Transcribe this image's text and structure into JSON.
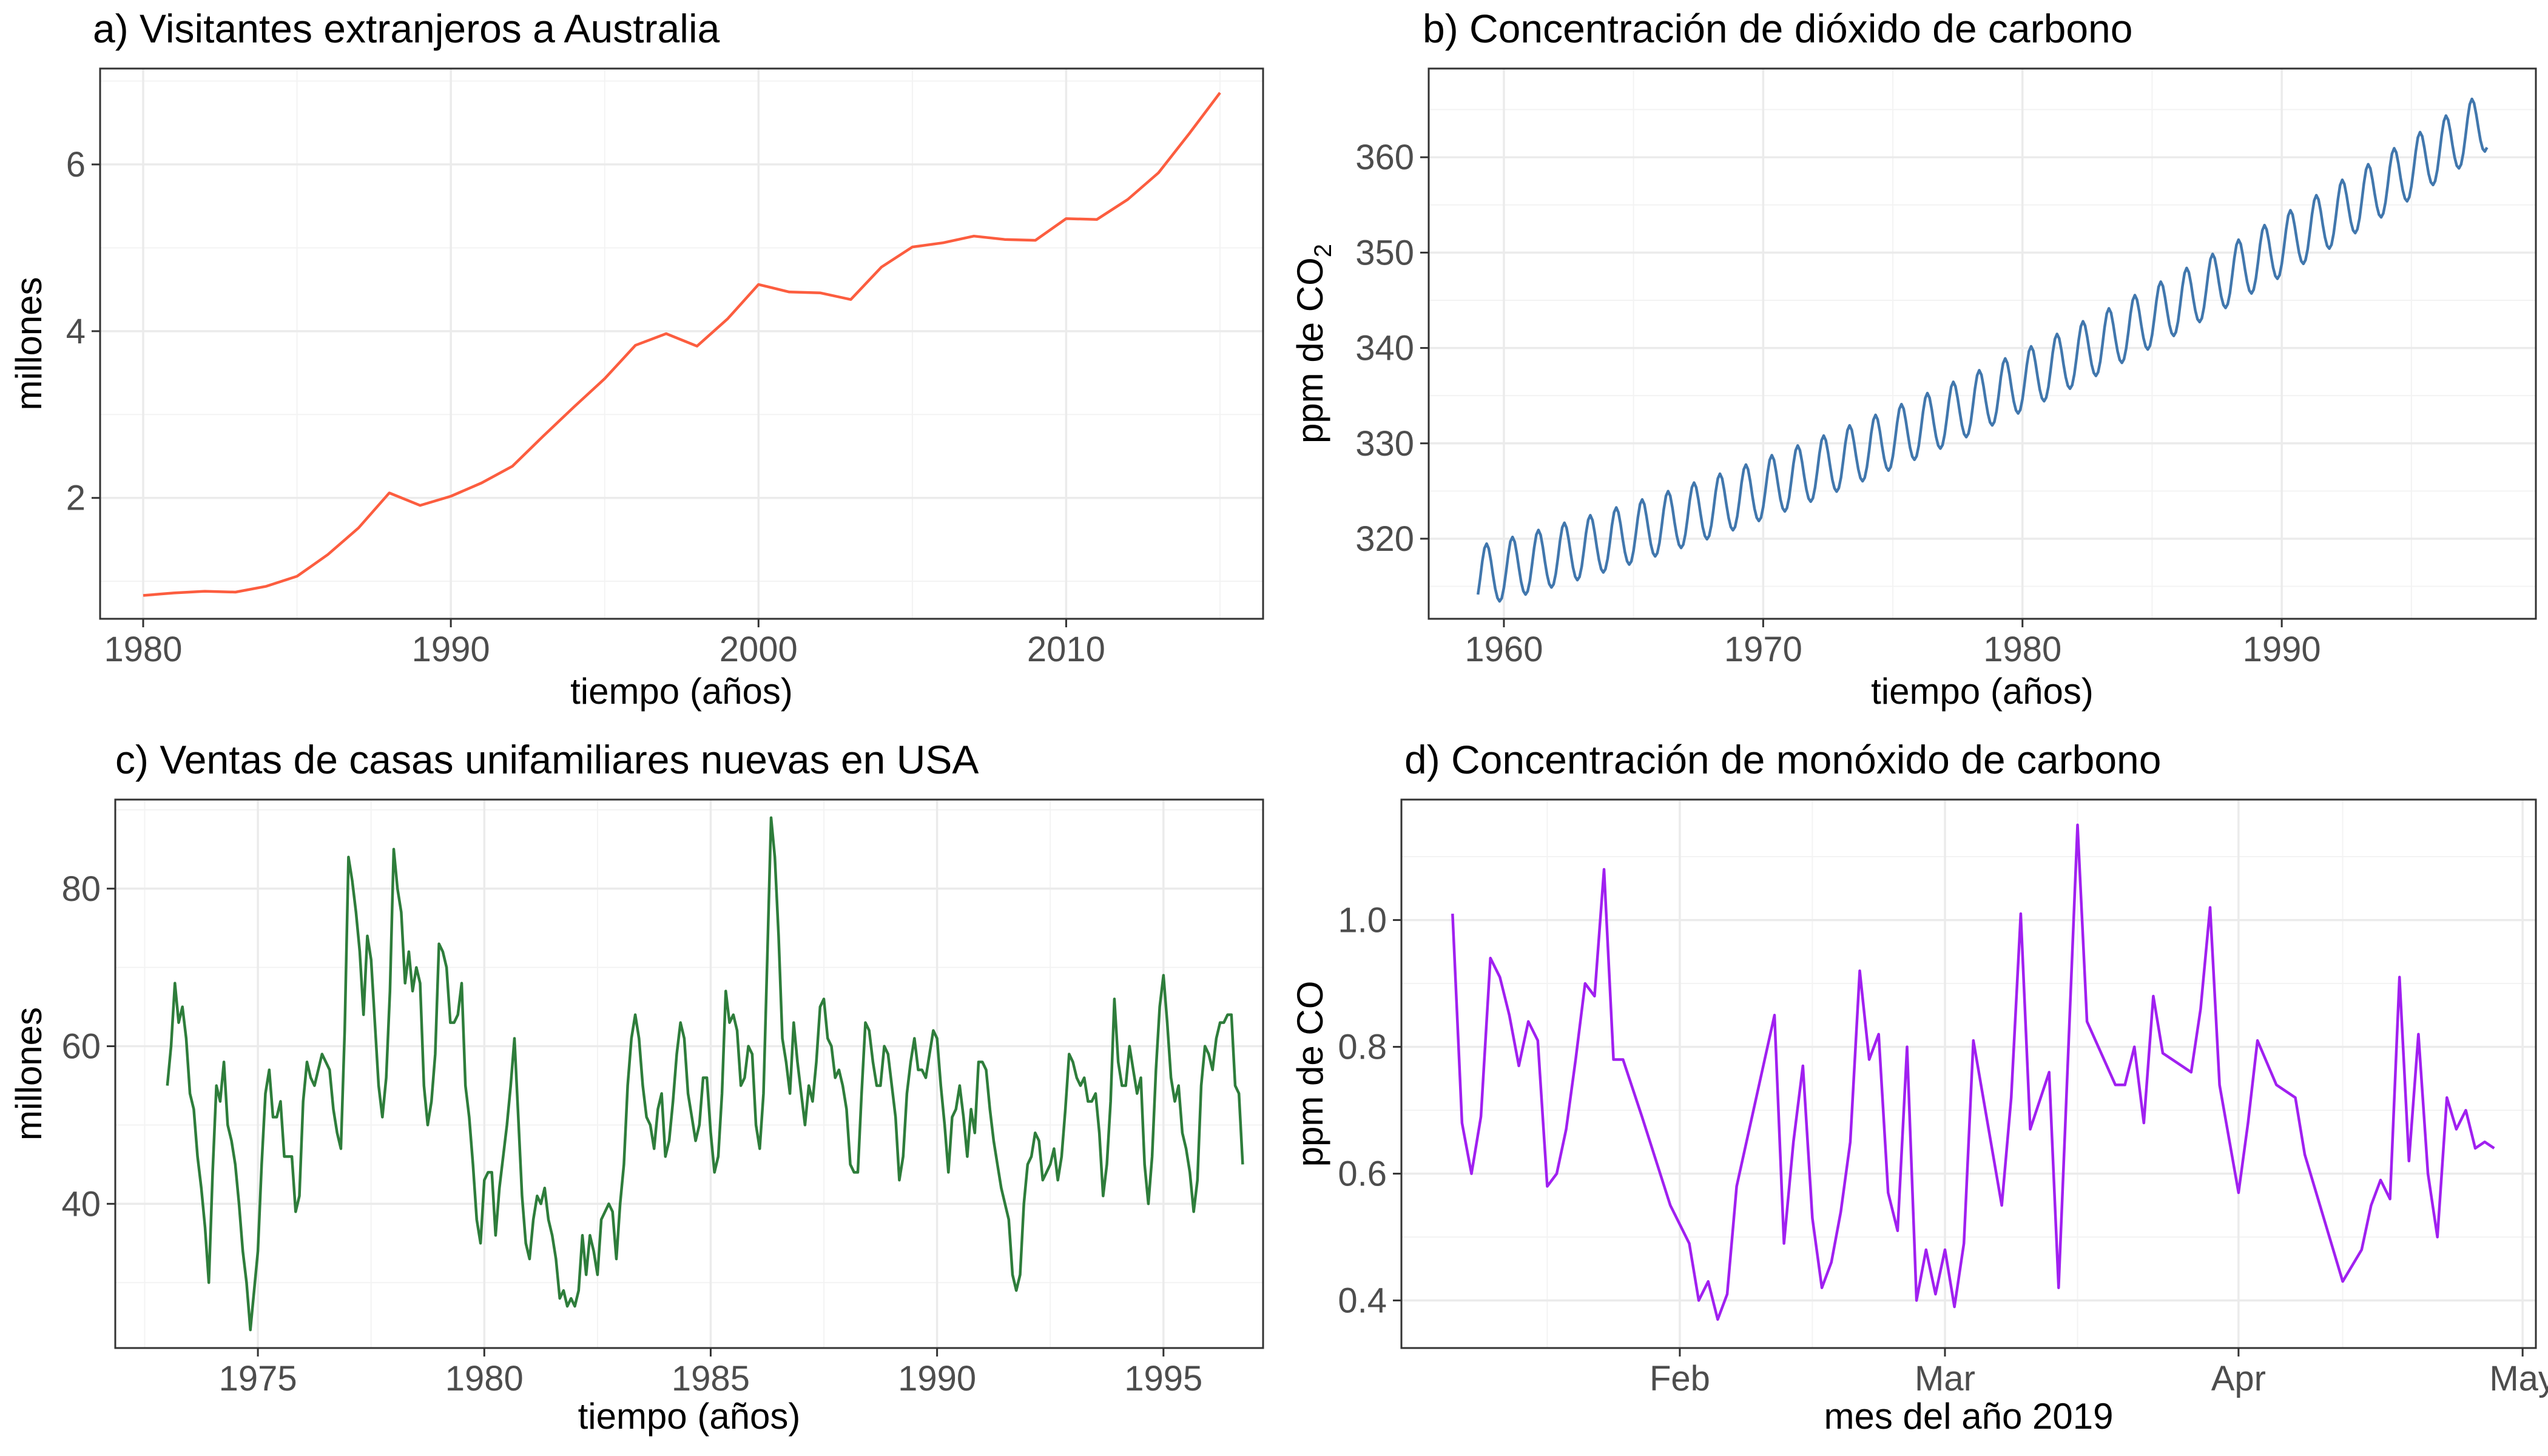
{
  "chart_data": [
    {
      "type": "line",
      "title": "a) Visitantes extranjeros a Australia",
      "xlabel": "tiempo (años)",
      "ylabel": "millones",
      "xlim": [
        1978.6,
        2016.4
      ],
      "ylim": [
        0.55,
        7.15
      ],
      "x_ticks": [
        1980,
        1990,
        2000,
        2010
      ],
      "x_tick_labels": [
        "1980",
        "1990",
        "2000",
        "2010"
      ],
      "y_ticks": [
        2,
        4,
        6
      ],
      "y_tick_labels": [
        "2",
        "4",
        "6"
      ],
      "grid": true,
      "color": "#fc5d3f",
      "series": [
        {
          "x": [
            1980,
            1981,
            1982,
            1983,
            1984,
            1985,
            1986,
            1987,
            1988,
            1989,
            1990,
            1991,
            1992,
            1993,
            1994,
            1995,
            1996,
            1997,
            1998,
            1999,
            2000,
            2001,
            2002,
            2003,
            2004,
            2005,
            2006,
            2007,
            2008,
            2009,
            2010,
            2011,
            2012,
            2013,
            2014,
            2015
          ],
          "values": [
            0.83,
            0.86,
            0.88,
            0.87,
            0.94,
            1.06,
            1.32,
            1.64,
            2.06,
            1.91,
            2.02,
            2.18,
            2.38,
            2.74,
            3.09,
            3.43,
            3.83,
            3.97,
            3.82,
            4.15,
            4.56,
            4.47,
            4.46,
            4.38,
            4.77,
            5.01,
            5.06,
            5.14,
            5.1,
            5.09,
            5.35,
            5.34,
            5.58,
            5.9,
            6.37,
            6.86
          ]
        }
      ]
    },
    {
      "type": "line",
      "title": "b) Concentración de dióxido de carbono",
      "xlabel": "tiempo (años)",
      "ylabel": "ppm de CO",
      "ylabel_subscript": "2",
      "xlim": [
        1957.1,
        1999.8
      ],
      "ylim": [
        311.6,
        369.3
      ],
      "x_ticks": [
        1960,
        1970,
        1980,
        1990
      ],
      "x_tick_labels": [
        "1960",
        "1970",
        "1980",
        "1990"
      ],
      "y_ticks": [
        320,
        330,
        340,
        350,
        360
      ],
      "y_tick_labels": [
        "320",
        "330",
        "340",
        "350",
        "360"
      ],
      "grid": true,
      "color": "#4177ad",
      "series": [
        {
          "x_start": 1959.0,
          "x_step_months": 1,
          "annual_mean_start": 315.9,
          "annual_mean_end": 363.8,
          "seasonal_amplitude": 3.2,
          "seasonal_peak_month": 5,
          "n_points": 468,
          "x_end": 1997.92
        }
      ]
    },
    {
      "type": "line",
      "title": "c) Ventas de casas unifamiliares nuevas en USA",
      "xlabel": "tiempo (años)",
      "ylabel": "millones",
      "xlim": [
        1971.85,
        1997.2
      ],
      "ylim": [
        21.7,
        91.3
      ],
      "x_ticks": [
        1975,
        1980,
        1985,
        1990,
        1995
      ],
      "x_tick_labels": [
        "1975",
        "1980",
        "1985",
        "1990",
        "1995"
      ],
      "y_ticks": [
        40,
        60,
        80
      ],
      "y_tick_labels": [
        "40",
        "60",
        "80"
      ],
      "grid": true,
      "color": "#2e7d3b",
      "series": [
        {
          "x_start": 1973.0,
          "x_step_months": 1,
          "values": [
            55,
            60,
            68,
            63,
            65,
            61,
            54,
            52,
            46,
            42,
            37,
            30,
            44,
            55,
            53,
            58,
            50,
            48,
            45,
            40,
            34,
            30,
            24,
            29,
            34,
            45,
            54,
            57,
            51,
            51,
            53,
            46,
            46,
            46,
            39,
            41,
            53,
            58,
            56,
            55,
            57,
            59,
            58,
            57,
            52,
            49,
            47,
            62,
            84,
            81,
            77,
            72,
            64,
            74,
            71,
            63,
            55,
            51,
            56,
            67,
            85,
            80,
            77,
            68,
            72,
            67,
            70,
            68,
            55,
            50,
            53,
            59,
            73,
            72,
            70,
            63,
            63,
            64,
            68,
            55,
            51,
            45,
            38,
            35,
            43,
            44,
            44,
            36,
            42,
            46,
            50,
            55,
            61,
            51,
            41,
            35,
            33,
            38,
            41,
            40,
            42,
            38,
            36,
            33,
            28,
            29,
            27,
            28,
            27,
            29,
            36,
            31,
            36,
            34,
            31,
            38,
            39,
            40,
            39,
            33,
            40,
            45,
            55,
            61,
            64,
            61,
            55,
            51,
            50,
            47,
            52,
            54,
            46,
            48,
            53,
            59,
            63,
            61,
            54,
            51,
            48,
            50,
            56,
            56,
            49,
            44,
            46,
            54,
            67,
            63,
            64,
            62,
            55,
            56,
            60,
            59,
            50,
            47,
            54,
            71,
            89,
            84,
            74,
            61,
            58,
            54,
            63,
            58,
            54,
            50,
            55,
            53,
            58,
            65,
            66,
            61,
            60,
            56,
            57,
            55,
            52,
            45,
            44,
            44,
            54,
            63,
            62,
            58,
            55,
            55,
            60,
            59,
            55,
            51,
            43,
            46,
            54,
            58,
            61,
            57,
            57,
            56,
            59,
            62,
            61,
            55,
            50,
            44,
            51,
            52,
            55,
            51,
            46,
            52,
            49,
            58,
            58,
            57,
            52,
            48,
            45,
            42,
            40,
            38,
            31,
            29,
            31,
            40,
            45,
            46,
            49,
            48,
            43,
            44,
            45,
            47,
            43,
            46,
            52,
            59,
            58,
            56,
            55,
            56,
            53,
            53,
            54,
            49,
            41,
            45,
            53,
            66,
            58,
            55,
            55,
            60,
            57,
            54,
            56,
            45,
            40,
            46,
            57,
            65,
            69,
            63,
            56,
            53,
            55,
            49,
            47,
            44,
            39,
            43,
            55,
            60,
            59,
            57,
            61,
            63,
            63,
            64,
            64,
            55,
            54,
            45
          ]
        }
      ]
    },
    {
      "type": "line",
      "title": "d) Concentración de monóxido de carbono",
      "xlabel": "mes del año 2019",
      "ylabel": "ppm de CO",
      "xlim": [
        2.6,
        122.4
      ],
      "ylim": [
        0.325,
        1.19
      ],
      "x_ticks": [
        32,
        60,
        91,
        121
      ],
      "x_tick_labels": [
        "Feb",
        "Mar",
        "Apr",
        "May"
      ],
      "y_ticks": [
        0.4,
        0.6,
        0.8,
        1.0
      ],
      "y_tick_labels": [
        "0.4",
        "0.6",
        "0.8",
        "1.0"
      ],
      "grid": true,
      "color": "#a020f0",
      "series": [
        {
          "x": [
            8,
            9,
            10,
            11,
            12,
            13,
            14,
            15,
            16,
            17,
            18,
            19,
            20,
            21,
            22,
            23,
            24,
            25,
            26,
            28,
            31,
            33,
            34,
            35,
            36,
            37,
            38,
            42,
            43,
            44,
            45,
            46,
            47,
            48,
            49,
            50,
            51,
            52,
            53,
            54,
            55,
            56,
            57,
            58,
            59,
            60,
            61,
            62,
            63,
            66,
            67,
            68,
            69,
            71,
            72,
            74,
            75,
            78,
            79,
            80,
            81,
            82,
            83,
            85,
            86,
            87,
            88,
            89,
            91,
            92,
            93,
            95,
            96,
            97,
            98,
            102,
            104,
            105,
            106,
            107,
            108,
            109,
            110,
            111,
            112,
            113,
            114,
            115,
            116,
            117,
            118
          ],
          "values": [
            1.01,
            0.68,
            0.6,
            0.69,
            0.94,
            0.91,
            0.85,
            0.77,
            0.84,
            0.81,
            0.58,
            0.6,
            0.67,
            0.78,
            0.9,
            0.88,
            1.08,
            0.78,
            0.78,
            0.69,
            0.55,
            0.49,
            0.4,
            0.43,
            0.37,
            0.41,
            0.58,
            0.85,
            0.49,
            0.65,
            0.77,
            0.53,
            0.42,
            0.46,
            0.54,
            0.65,
            0.92,
            0.78,
            0.82,
            0.57,
            0.51,
            0.8,
            0.4,
            0.48,
            0.41,
            0.48,
            0.39,
            0.49,
            0.81,
            0.55,
            0.72,
            1.01,
            0.67,
            0.76,
            0.42,
            1.15,
            0.84,
            0.74,
            0.74,
            0.8,
            0.68,
            0.88,
            0.79,
            0.77,
            0.76,
            0.86,
            1.02,
            0.74,
            0.57,
            0.68,
            0.81,
            0.74,
            0.73,
            0.72,
            0.63,
            0.43,
            0.48,
            0.55,
            0.59,
            0.56,
            0.91,
            0.62,
            0.82,
            0.6,
            0.5,
            0.72,
            0.67,
            0.7,
            0.64,
            0.65,
            0.64
          ]
        }
      ]
    }
  ]
}
